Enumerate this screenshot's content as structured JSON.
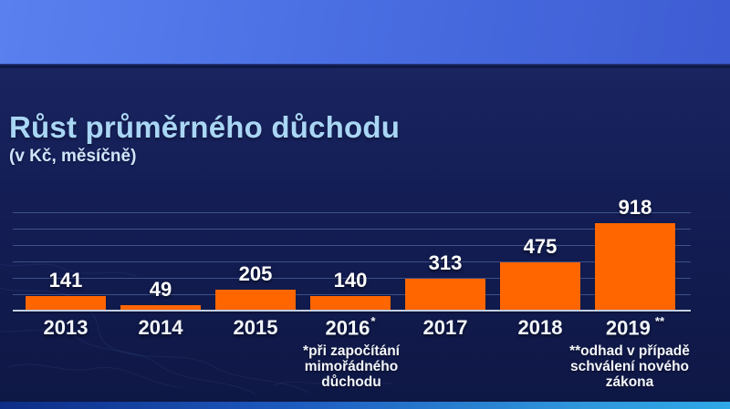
{
  "header": {
    "title": "Růst průměrného důchodu",
    "subtitle": "(v Kč, měsíčně)"
  },
  "chart_data": {
    "type": "bar",
    "title": "Růst průměrného důchodu",
    "subtitle": "(v Kč, měsíčně)",
    "unit": "Kč",
    "categories": [
      "2013",
      "2014",
      "2015",
      "2016",
      "2017",
      "2018",
      "2019"
    ],
    "category_markers": [
      "",
      "",
      "",
      "*",
      "",
      "",
      "**"
    ],
    "values": [
      141,
      49,
      205,
      140,
      313,
      475,
      918
    ],
    "ylim": [
      0,
      1150
    ],
    "grid": true,
    "gridline_count": 6,
    "legend": "none",
    "bar_color": "#ff6600",
    "annotations": [
      "*při započítání mimořádného důchodu",
      "**odhad v případě schválení nového zákona"
    ]
  },
  "footnotes": [
    {
      "text": "*při započítání\nmimořádného\ndůchodu"
    },
    {
      "text": "**odhad v případě\nschválení nového\nzákona"
    }
  ],
  "colors": {
    "bar": "#ff6600",
    "title": "#a9d6f5",
    "subtitle": "#cfe6fa",
    "label_text": "#ffffff",
    "background_top_band": "#4a6fe3",
    "background_main": "#151f58",
    "gridline": "#87a8e4",
    "baseline": "#c2cfe2",
    "bottom_strip_left": "#0d2c86",
    "bottom_strip_right": "#2ea8e8"
  }
}
